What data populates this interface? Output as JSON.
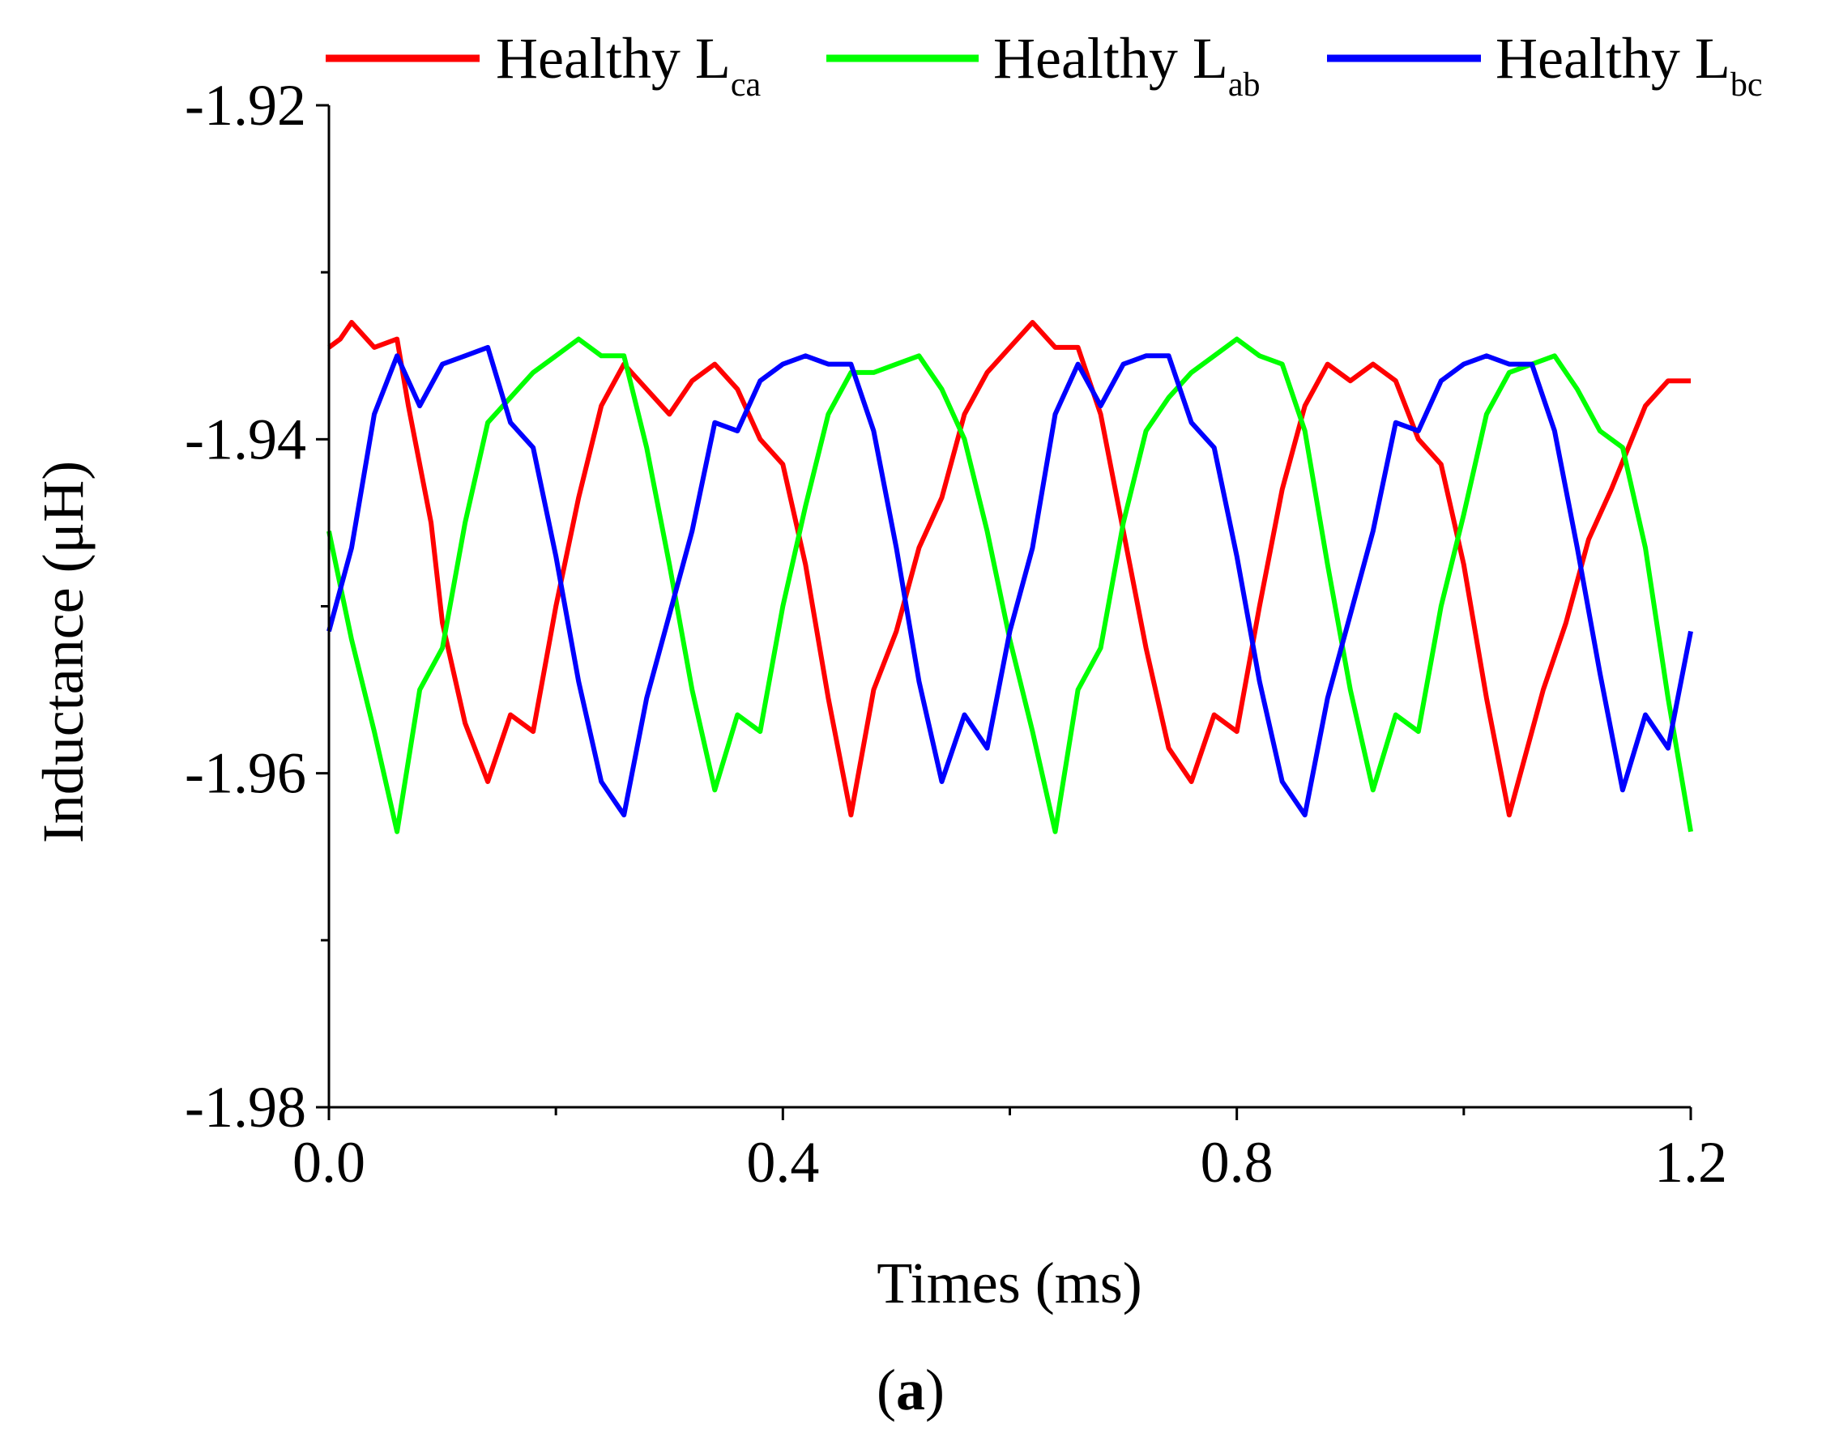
{
  "chart_data": {
    "type": "line",
    "title": "",
    "xlabel": "Times (ms)",
    "ylabel": "Inductance (μH)",
    "xlim": [
      0.0,
      1.2
    ],
    "ylim": [
      -1.98,
      -1.92
    ],
    "x_major_ticks": [
      0.0,
      0.4,
      0.8,
      1.2
    ],
    "x_tick_labels": [
      "0.0",
      "0.4",
      "0.8",
      "1.2"
    ],
    "x_minor_ticks": [
      0.2,
      0.6,
      1.0
    ],
    "y_major_ticks": [
      -1.98,
      -1.96,
      -1.94,
      -1.92
    ],
    "y_tick_labels": [
      "-1.98",
      "-1.96",
      "-1.94",
      "-1.92"
    ],
    "y_minor_ticks": [
      -1.97,
      -1.95,
      -1.93
    ],
    "grid": false,
    "legend_position": "top",
    "series": [
      {
        "name": "Healthy Lca",
        "legend_main": "Healthy L",
        "legend_sub": "ca",
        "color": "#ff0000",
        "x": [
          0.0,
          0.01,
          0.02,
          0.04,
          0.06,
          0.07,
          0.09,
          0.1,
          0.12,
          0.14,
          0.16,
          0.18,
          0.2,
          0.22,
          0.24,
          0.26,
          0.28,
          0.3,
          0.32,
          0.34,
          0.36,
          0.38,
          0.4,
          0.42,
          0.44,
          0.46,
          0.48,
          0.5,
          0.52,
          0.54,
          0.56,
          0.58,
          0.6,
          0.62,
          0.64,
          0.66,
          0.68,
          0.7,
          0.72,
          0.74,
          0.76,
          0.78,
          0.8,
          0.82,
          0.84,
          0.86,
          0.88,
          0.9,
          0.92,
          0.94,
          0.96,
          0.98,
          1.0,
          1.02,
          1.04,
          1.07,
          1.09,
          1.11,
          1.13,
          1.16,
          1.18,
          1.2
        ],
        "y": [
          -1.9345,
          -1.934,
          -1.933,
          -1.9345,
          -1.934,
          -1.938,
          -1.945,
          -1.951,
          -1.957,
          -1.9605,
          -1.9565,
          -1.9575,
          -1.95,
          -1.9435,
          -1.938,
          -1.9355,
          -1.937,
          -1.9385,
          -1.9365,
          -1.9355,
          -1.937,
          -1.94,
          -1.9415,
          -1.9475,
          -1.9555,
          -1.9625,
          -1.955,
          -1.9515,
          -1.9465,
          -1.9435,
          -1.9385,
          -1.936,
          -1.9345,
          -1.933,
          -1.9345,
          -1.9345,
          -1.9385,
          -1.9455,
          -1.9525,
          -1.9585,
          -1.9605,
          -1.9565,
          -1.9575,
          -1.95,
          -1.943,
          -1.938,
          -1.9355,
          -1.9365,
          -1.9355,
          -1.9365,
          -1.94,
          -1.9415,
          -1.9475,
          -1.9555,
          -1.9625,
          -1.955,
          -1.951,
          -1.946,
          -1.943,
          -1.938,
          -1.9365,
          -1.9365
        ]
      },
      {
        "name": "Healthy Lab",
        "legend_main": "Healthy L",
        "legend_sub": "ab",
        "color": "#00ff00",
        "x": [
          0.0,
          0.02,
          0.04,
          0.06,
          0.08,
          0.1,
          0.12,
          0.14,
          0.16,
          0.18,
          0.2,
          0.22,
          0.24,
          0.26,
          0.28,
          0.3,
          0.32,
          0.34,
          0.36,
          0.38,
          0.4,
          0.42,
          0.44,
          0.46,
          0.48,
          0.5,
          0.52,
          0.54,
          0.56,
          0.58,
          0.6,
          0.62,
          0.64,
          0.66,
          0.68,
          0.7,
          0.72,
          0.74,
          0.76,
          0.78,
          0.8,
          0.82,
          0.84,
          0.86,
          0.88,
          0.9,
          0.92,
          0.94,
          0.96,
          0.98,
          1.0,
          1.02,
          1.04,
          1.06,
          1.08,
          1.1,
          1.12,
          1.14,
          1.16,
          1.18,
          1.2
        ],
        "y": [
          -1.9455,
          -1.952,
          -1.9575,
          -1.9635,
          -1.955,
          -1.9525,
          -1.945,
          -1.939,
          -1.9375,
          -1.936,
          -1.935,
          -1.934,
          -1.935,
          -1.935,
          -1.9405,
          -1.9475,
          -1.955,
          -1.961,
          -1.9565,
          -1.9575,
          -1.95,
          -1.944,
          -1.9385,
          -1.936,
          -1.936,
          -1.9355,
          -1.935,
          -1.937,
          -1.94,
          -1.9455,
          -1.952,
          -1.9575,
          -1.9635,
          -1.955,
          -1.9525,
          -1.945,
          -1.9395,
          -1.9375,
          -1.936,
          -1.935,
          -1.934,
          -1.935,
          -1.9355,
          -1.9395,
          -1.9475,
          -1.955,
          -1.961,
          -1.9565,
          -1.9575,
          -1.95,
          -1.9445,
          -1.9385,
          -1.936,
          -1.9355,
          -1.935,
          -1.937,
          -1.9395,
          -1.9405,
          -1.9465,
          -1.9555,
          -1.9635
        ]
      },
      {
        "name": "Healthy Lbc",
        "legend_main": "Healthy L",
        "legend_sub": "bc",
        "color": "#0000ff",
        "x": [
          0.0,
          0.02,
          0.04,
          0.06,
          0.08,
          0.1,
          0.12,
          0.14,
          0.16,
          0.18,
          0.2,
          0.22,
          0.24,
          0.26,
          0.28,
          0.3,
          0.32,
          0.34,
          0.36,
          0.38,
          0.4,
          0.42,
          0.44,
          0.46,
          0.48,
          0.5,
          0.52,
          0.54,
          0.56,
          0.58,
          0.6,
          0.62,
          0.64,
          0.66,
          0.68,
          0.7,
          0.72,
          0.74,
          0.76,
          0.78,
          0.8,
          0.82,
          0.84,
          0.86,
          0.88,
          0.9,
          0.92,
          0.94,
          0.96,
          0.98,
          1.0,
          1.02,
          1.04,
          1.06,
          1.08,
          1.1,
          1.12,
          1.14,
          1.16,
          1.18,
          1.2
        ],
        "y": [
          -1.9515,
          -1.9465,
          -1.9385,
          -1.935,
          -1.938,
          -1.9355,
          -1.935,
          -1.9345,
          -1.939,
          -1.9405,
          -1.947,
          -1.9545,
          -1.9605,
          -1.9625,
          -1.9555,
          -1.9505,
          -1.9455,
          -1.939,
          -1.9395,
          -1.9365,
          -1.9355,
          -1.935,
          -1.9355,
          -1.9355,
          -1.9395,
          -1.9465,
          -1.9545,
          -1.9605,
          -1.9565,
          -1.9585,
          -1.9515,
          -1.9465,
          -1.9385,
          -1.9355,
          -1.938,
          -1.9355,
          -1.935,
          -1.935,
          -1.939,
          -1.9405,
          -1.947,
          -1.9545,
          -1.9605,
          -1.9625,
          -1.9555,
          -1.9505,
          -1.9455,
          -1.939,
          -1.9395,
          -1.9365,
          -1.9355,
          -1.935,
          -1.9355,
          -1.9355,
          -1.9395,
          -1.9465,
          -1.954,
          -1.961,
          -1.9565,
          -1.9585,
          -1.9515
        ]
      }
    ]
  },
  "caption": {
    "open": "(",
    "letter": "a",
    "close": ")"
  }
}
